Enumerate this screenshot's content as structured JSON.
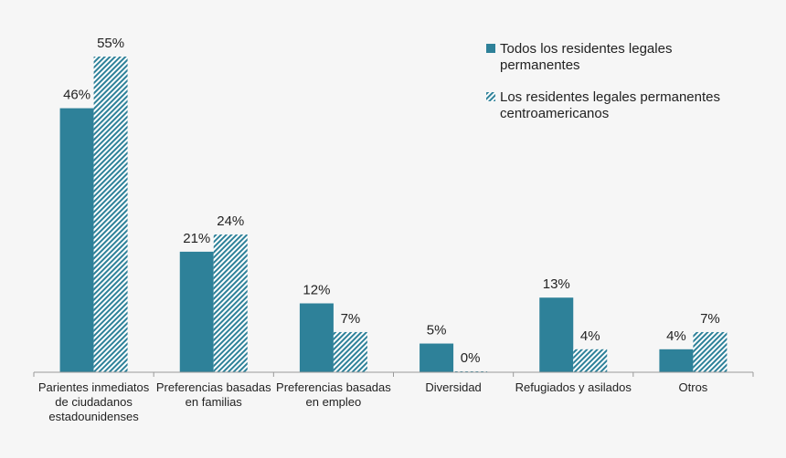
{
  "chart_data": {
    "type": "bar",
    "categories": [
      [
        "Parientes inmediatos",
        "de ciudadanos",
        "estadounidenses"
      ],
      [
        "Preferencias basadas",
        "en familias"
      ],
      [
        "Preferencias basadas",
        "en empleo"
      ],
      [
        "Diversidad"
      ],
      [
        "Refugiados y asilados"
      ],
      [
        "Otros"
      ]
    ],
    "series": [
      {
        "name": "Todos los residentes legales permanentes",
        "name_lines": [
          "Todos los residentes legales",
          "permanentes"
        ],
        "values": [
          46,
          21,
          12,
          5,
          13,
          4
        ],
        "labels": [
          "46%",
          "21%",
          "12%",
          "5%",
          "13%",
          "4%"
        ],
        "color": "#2e8199",
        "pattern": "solid"
      },
      {
        "name": "Los residentes legales permanentes centroamericanos",
        "name_lines": [
          "Los residentes legales permanentes",
          "centroamericanos"
        ],
        "values": [
          55,
          24,
          7,
          0,
          4,
          7
        ],
        "labels": [
          "55%",
          "24%",
          "7%",
          "0%",
          "4%",
          "7%"
        ],
        "color": "#2e8199",
        "pattern": "diagonal-hatch"
      }
    ],
    "ylim": [
      0,
      55
    ],
    "grid": false,
    "legend_position": "top-right",
    "axis_color": "#9a9a9a"
  }
}
